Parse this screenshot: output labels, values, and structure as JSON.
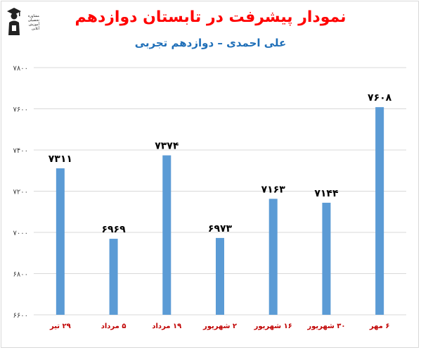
{
  "chart_data": {
    "type": "bar",
    "title": "نمودار پیشرفت در تابستان دوازدهم",
    "subtitle": "علی احمدی – دوازدهم تجربی",
    "categories": [
      "۲۹ تیر",
      "۵ مرداد",
      "۱۹ مرداد",
      "۲ شهریور",
      "۱۶ شهریور",
      "۳۰ شهریور",
      "۶ مهر"
    ],
    "values": [
      7311,
      6969,
      7374,
      6973,
      7163,
      7144,
      7608
    ],
    "value_labels": [
      "۷۳۱۱",
      "۶۹۶۹",
      "۷۳۷۴",
      "۶۹۷۳",
      "۷۱۶۳",
      "۷۱۴۴",
      "۷۶۰۸"
    ],
    "yticks": [
      6600,
      6800,
      7000,
      7200,
      7400,
      7600,
      7800
    ],
    "ytick_labels": [
      "۶۶۰۰",
      "۶۸۰۰",
      "۷۰۰۰",
      "۷۲۰۰",
      "۷۴۰۰",
      "۷۶۰۰",
      "۷۸۰۰"
    ],
    "ylim": [
      6600,
      7800
    ],
    "grid": true,
    "bar_color": "#5b9bd5",
    "title_color": "#ff0000",
    "subtitle_color": "#1f6fb8",
    "category_label_color": "#c00000"
  },
  "logo": {
    "icon": "graduate-figure-icon",
    "text_lines": [
      "مشاوره",
      "تحصیلی",
      "آموزش",
      "آنلاین"
    ]
  }
}
